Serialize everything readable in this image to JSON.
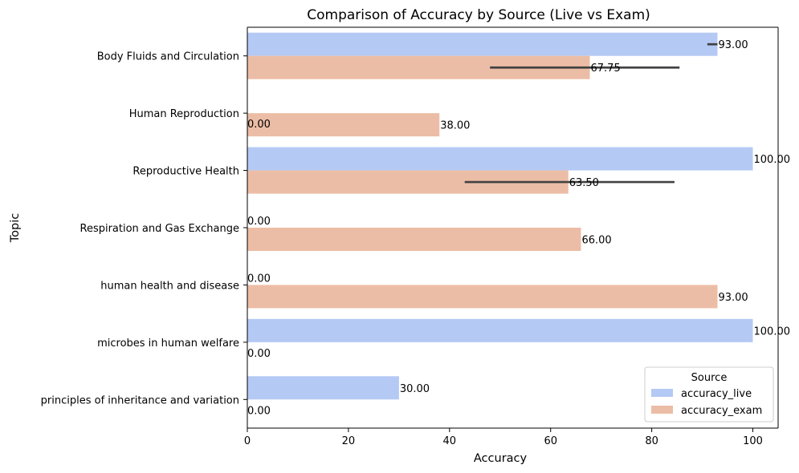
{
  "chart_data": {
    "type": "bar",
    "orientation": "horizontal",
    "title": "Comparison of Accuracy by Source (Live vs Exam)",
    "xlabel": "Accuracy",
    "ylabel": "Topic",
    "xlim": [
      0,
      105
    ],
    "x_ticks": [
      0,
      20,
      40,
      60,
      80,
      100
    ],
    "grid": false,
    "categories": [
      "Body Fluids and Circulation",
      "Human Reproduction",
      "Reproductive Health",
      "Respiration and Gas Exchange",
      "human health and disease",
      "microbes in human welfare",
      "principles of inheritance and variation"
    ],
    "series": [
      {
        "name": "accuracy_live",
        "color": "#b4c9f4",
        "values": [
          93,
          0,
          100,
          0,
          0,
          100,
          30
        ],
        "error_bars": [
          [
            91,
            93
          ],
          null,
          null,
          null,
          null,
          null,
          null
        ]
      },
      {
        "name": "accuracy_exam",
        "color": "#ecbda6",
        "values": [
          67.75,
          38,
          63.5,
          66,
          93,
          0,
          0
        ],
        "error_bars": [
          [
            48,
            85.5
          ],
          null,
          [
            43,
            84.5
          ],
          null,
          null,
          null,
          null
        ]
      }
    ],
    "data_labels": [
      [
        {
          "text": "93.00",
          "anchor": "end"
        },
        {
          "text": "0.00",
          "anchor": "origin-below"
        },
        {
          "text": "100.00",
          "anchor": "end"
        },
        {
          "text": "0.00",
          "anchor": "origin-above"
        },
        {
          "text": "0.00",
          "anchor": "origin-above"
        },
        {
          "text": "100.00",
          "anchor": "end"
        },
        {
          "text": "30.00",
          "anchor": "end"
        }
      ],
      [
        {
          "text": "67.75",
          "anchor": "end"
        },
        {
          "text": "38.00",
          "anchor": "end"
        },
        {
          "text": "63.50",
          "anchor": "end"
        },
        {
          "text": "66.00",
          "anchor": "end"
        },
        {
          "text": "93.00",
          "anchor": "end"
        },
        {
          "text": "0.00",
          "anchor": "origin-below"
        },
        {
          "text": "0.00",
          "anchor": "origin-below"
        }
      ]
    ],
    "legend": {
      "title": "Source",
      "placement": "lower-right",
      "entries": [
        "accuracy_live",
        "accuracy_exam"
      ]
    }
  }
}
